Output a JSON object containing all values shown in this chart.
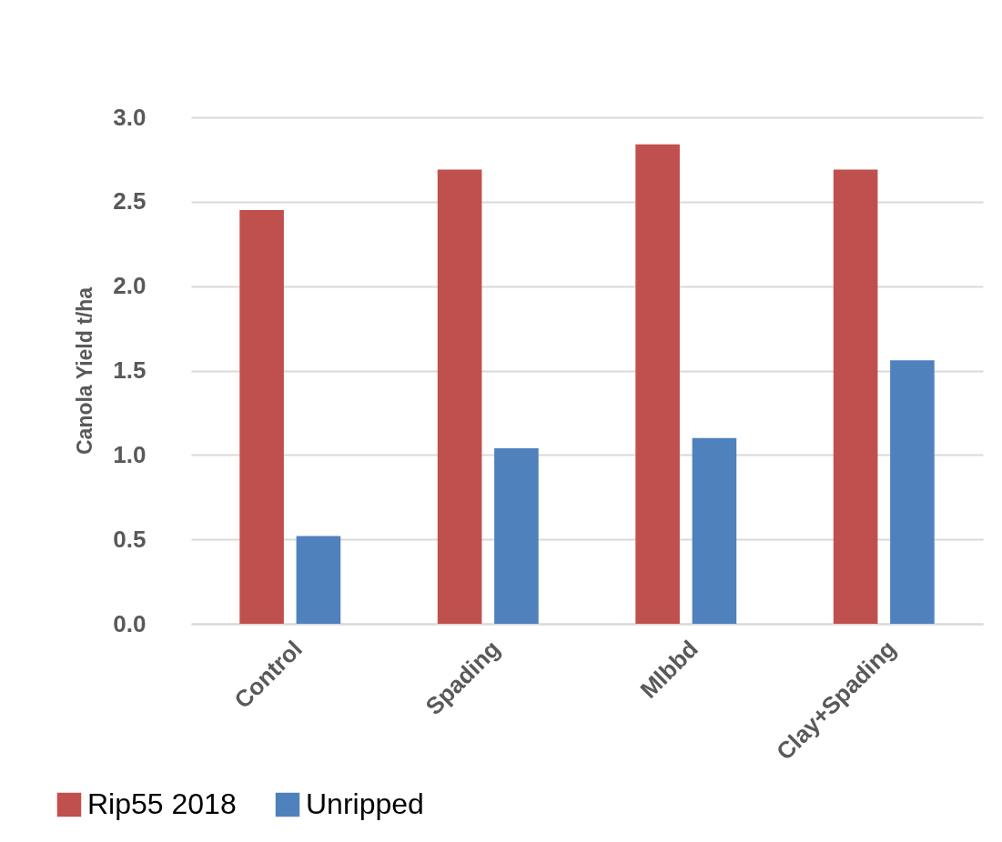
{
  "chart_data": {
    "type": "bar",
    "ylabel": "Canola Yield t/ha",
    "categories": [
      "Control",
      "Spading",
      "Mlbbd",
      "Clay+Spading"
    ],
    "series": [
      {
        "name": "Rip55 2018",
        "color": "#c0504d",
        "values": [
          2.45,
          2.69,
          2.84,
          2.69
        ]
      },
      {
        "name": "Unripped",
        "color": "#4f81bd",
        "values": [
          0.52,
          1.04,
          1.1,
          1.56
        ]
      }
    ],
    "ylim": [
      0,
      3
    ],
    "yticks": [
      {
        "value": 0,
        "label": "0.0"
      },
      {
        "value": 0.5,
        "label": "0.5"
      },
      {
        "value": 1,
        "label": "1.0"
      },
      {
        "value": 1.5,
        "label": "1.5"
      },
      {
        "value": 2,
        "label": "2.0"
      },
      {
        "value": 2.5,
        "label": "2.5"
      },
      {
        "value": 3,
        "label": "3.0"
      }
    ],
    "grid": "y",
    "legend": "bottom"
  }
}
